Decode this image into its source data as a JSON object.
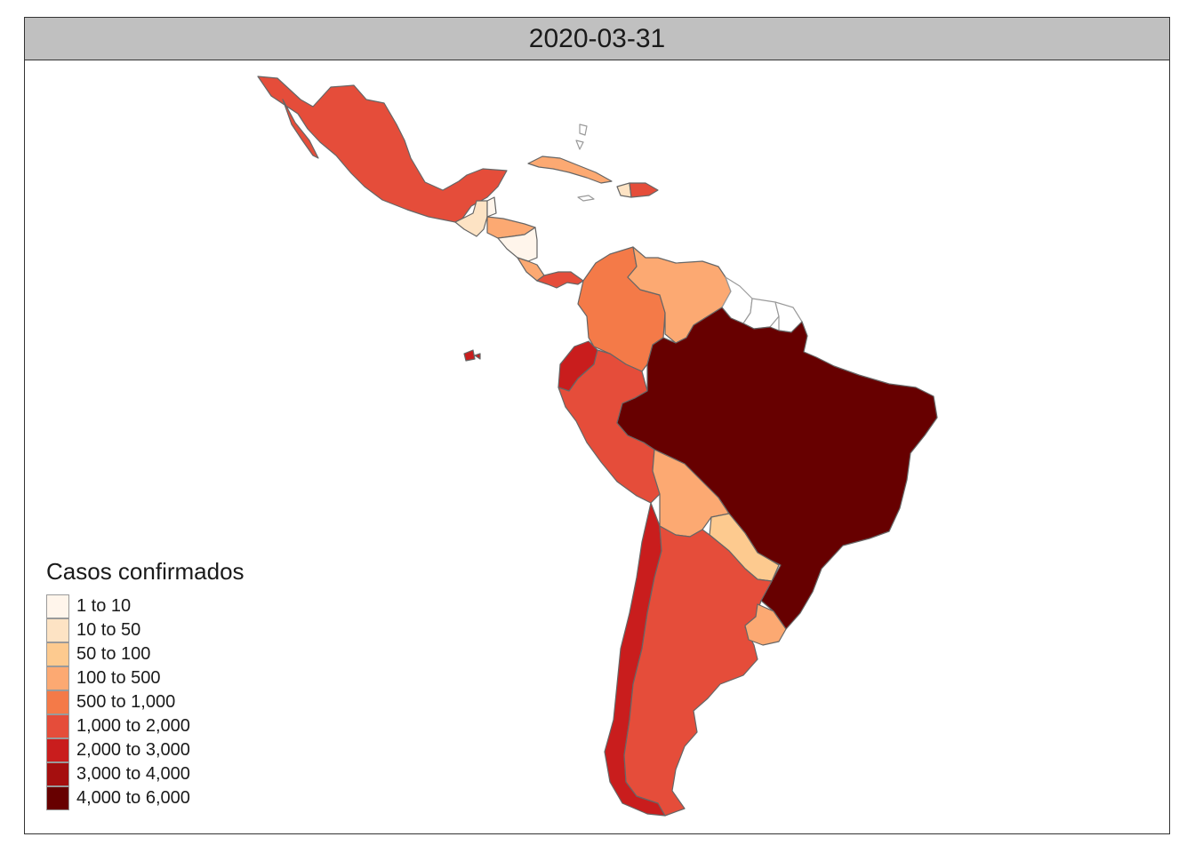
{
  "facet_title": "2020-03-31",
  "legend": {
    "title": "Casos confirmados",
    "items": [
      {
        "label": "1 to 10",
        "color": "#fff5eb"
      },
      {
        "label": "10 to 50",
        "color": "#fde3c4"
      },
      {
        "label": "50 to 100",
        "color": "#fdca8f"
      },
      {
        "label": "100 to 500",
        "color": "#fca972"
      },
      {
        "label": "500 to 1,000",
        "color": "#f47a48"
      },
      {
        "label": "1,000 to 2,000",
        "color": "#e54d3a"
      },
      {
        "label": "2,000 to 3,000",
        "color": "#c91d1d"
      },
      {
        "label": "3,000 to 4,000",
        "color": "#a50f0f"
      },
      {
        "label": "4,000 to 6,000",
        "color": "#670000"
      }
    ]
  },
  "regions": [
    {
      "id": "mexico",
      "bin": 5
    },
    {
      "id": "guatemala",
      "bin": 1
    },
    {
      "id": "belize",
      "bin": 0
    },
    {
      "id": "honduras",
      "bin": 3
    },
    {
      "id": "nicaragua",
      "bin": 0
    },
    {
      "id": "costa-rica",
      "bin": 3
    },
    {
      "id": "panama",
      "bin": 5
    },
    {
      "id": "cuba",
      "bin": 3
    },
    {
      "id": "dominican-republic",
      "bin": 5
    },
    {
      "id": "haiti",
      "bin": 1
    },
    {
      "id": "colombia",
      "bin": 4
    },
    {
      "id": "venezuela",
      "bin": 3
    },
    {
      "id": "ecuador",
      "bin": 6
    },
    {
      "id": "peru",
      "bin": 5
    },
    {
      "id": "brazil",
      "bin": 8
    },
    {
      "id": "bolivia",
      "bin": 3
    },
    {
      "id": "paraguay",
      "bin": 2
    },
    {
      "id": "chile",
      "bin": 6
    },
    {
      "id": "argentina",
      "bin": 5
    },
    {
      "id": "uruguay",
      "bin": 3
    },
    {
      "id": "guyana",
      "bin": null
    },
    {
      "id": "suriname",
      "bin": null
    },
    {
      "id": "french-guiana",
      "bin": null
    },
    {
      "id": "jamaica",
      "bin": null
    },
    {
      "id": "bahamas",
      "bin": null
    },
    {
      "id": "galapagos",
      "bin": 6
    }
  ]
}
